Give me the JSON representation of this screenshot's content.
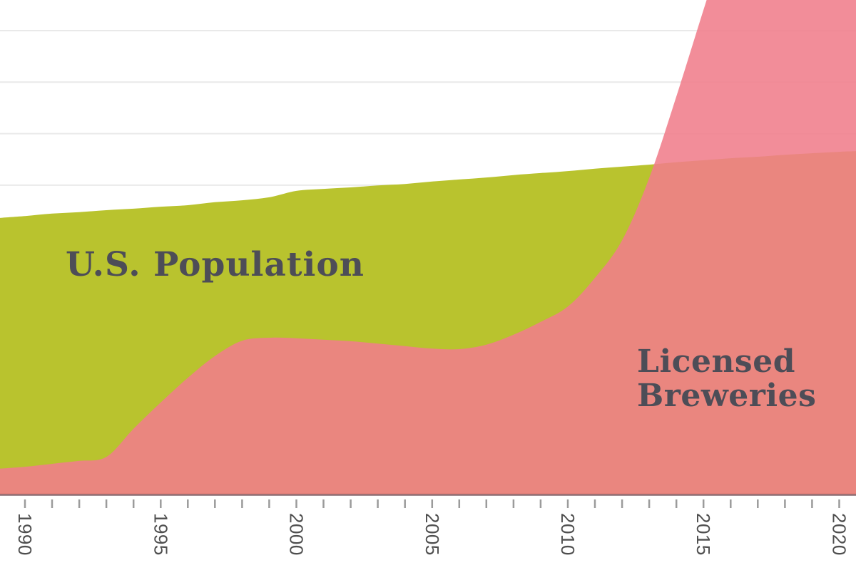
{
  "chart_data": {
    "type": "area",
    "title": "",
    "x_axis": {
      "tick_years_start": 1989,
      "tick_years_end": 2020,
      "tick_step": 1,
      "label_years": [
        "1990",
        "1995",
        "2000",
        "2005",
        "2010",
        "2015",
        "2020"
      ],
      "visible_year_range": [
        1989.1,
        2020.6
      ],
      "label_rotation_deg": 90
    },
    "y_axis": {
      "labeled": false,
      "note": "no y-axis shown; each series plotted on its own relative scale, values are fraction of plot height (0 = baseline, 1 = top of plot)",
      "range_rel": [
        0,
        1
      ],
      "gridlines": "horizontal, light gray"
    },
    "x": [
      1989,
      1990,
      1991,
      1992,
      1993,
      1994,
      1995,
      1996,
      1997,
      1998,
      1999,
      2000,
      2001,
      2002,
      2003,
      2004,
      2005,
      2006,
      2007,
      2008,
      2009,
      2010,
      2011,
      2012,
      2013,
      2014,
      2015,
      2016,
      2017,
      2018,
      2019,
      2020,
      2021
    ],
    "series": [
      {
        "id": "us-population",
        "name": "U.S. Population",
        "annotation": "U.S. Population",
        "fill": "#b9c32e",
        "values_rel": [
          0.559,
          0.563,
          0.568,
          0.571,
          0.575,
          0.578,
          0.582,
          0.585,
          0.591,
          0.595,
          0.601,
          0.614,
          0.618,
          0.621,
          0.625,
          0.628,
          0.633,
          0.637,
          0.641,
          0.646,
          0.65,
          0.654,
          0.659,
          0.663,
          0.667,
          0.672,
          0.676,
          0.68,
          0.683,
          0.687,
          0.69,
          0.693,
          0.695
        ],
        "shape_note": "slow steady rise with a small step up at the 2000 census"
      },
      {
        "id": "licensed-breweries",
        "name": "Licensed Breweries",
        "annotation": "Licensed Breweries",
        "fill": "rgba(240,125,139,0.88)",
        "values_rel": [
          0.052,
          0.056,
          0.062,
          0.068,
          0.076,
          0.133,
          0.186,
          0.236,
          0.28,
          0.311,
          0.317,
          0.316,
          0.313,
          0.31,
          0.305,
          0.3,
          0.295,
          0.294,
          0.303,
          0.323,
          0.349,
          0.38,
          0.438,
          0.514,
          0.64,
          0.805,
          0.98,
          1.15,
          1.27,
          1.35,
          1.4,
          1.43,
          1.44
        ],
        "shape_note": "low in 1990, boom 1994-1999, plateau/slight dip 2000-2006, explosive growth after 2009, exits top of plot around 2015; values above 1.0 are clipped by the plot top"
      }
    ],
    "legend": "in-plot text annotations instead of legend"
  },
  "annotations": {
    "population_label": "U.S. Population",
    "breweries_label_line1": "Licensed",
    "breweries_label_line2": "Breweries"
  },
  "colors": {
    "background": "#ffffff",
    "population_fill": "#b9c32e",
    "breweries_fill": "rgba(240,125,139,0.88)",
    "breweries_over_white": "#f28d99",
    "breweries_over_green": "#e98580",
    "gridline": "#e9e9e9",
    "axis_line": "rgba(70,25,35,0.5)",
    "tick": "#9b9b9b",
    "tick_label": "#4f4f4f",
    "annotation_text": "#4d4d57"
  }
}
